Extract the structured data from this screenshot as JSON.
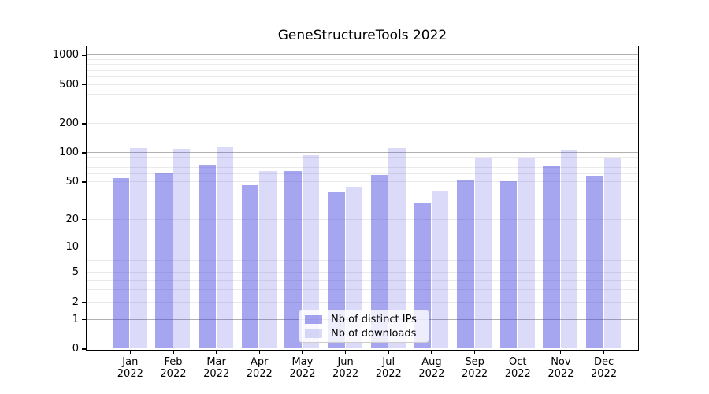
{
  "figure": {
    "title": "GeneStructureTools 2022"
  },
  "chart_data": {
    "type": "bar",
    "title": "GeneStructureTools 2022",
    "categories": [
      "Jan 2022",
      "Feb 2022",
      "Mar 2022",
      "Apr 2022",
      "May 2022",
      "Jun 2022",
      "Jul 2022",
      "Aug 2022",
      "Sep 2022",
      "Oct 2022",
      "Nov 2022",
      "Dec 2022"
    ],
    "series": [
      {
        "name": "Nb of distinct IPs",
        "color": "rgba(64,64,224,0.47)",
        "values": [
          54,
          62,
          75,
          46,
          64,
          39,
          59,
          30,
          52,
          50,
          72,
          58
        ]
      },
      {
        "name": "Nb of downloads",
        "color": "rgba(64,64,224,0.19)",
        "values": [
          112,
          108,
          116,
          64,
          93,
          44,
          111,
          40,
          87,
          87,
          107,
          88
        ]
      }
    ],
    "xlabel": "",
    "ylabel": "",
    "yscale": "log1p",
    "yticks": [
      0,
      1,
      2,
      5,
      10,
      20,
      50,
      100,
      200,
      500,
      1000
    ],
    "ylim": [
      0,
      1236
    ],
    "grid": true,
    "legend_position": "lower center"
  },
  "colors": {
    "grid_major": "#b0b0b0",
    "grid_minor": "#eaeaea",
    "spine": "#000000",
    "legend_border": "#cccccc"
  }
}
